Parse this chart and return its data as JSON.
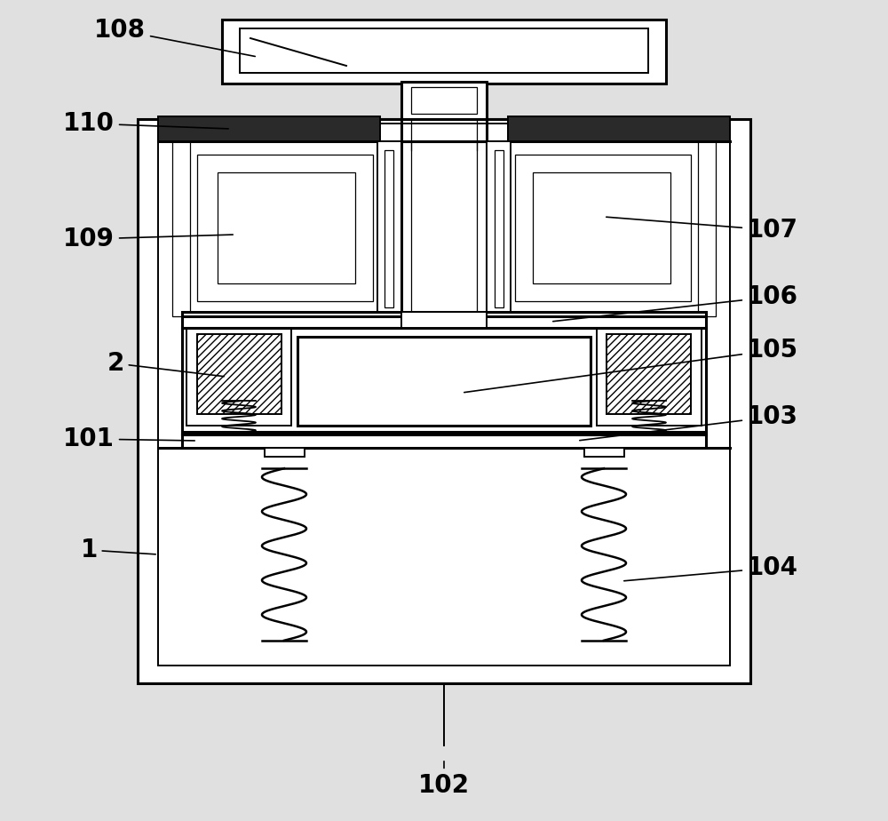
{
  "bg_color": "#e0e0e0",
  "line_color": "#000000",
  "dark_fill": "#2a2a2a",
  "fig_width": 10.0,
  "fig_height": 9.24,
  "font_size": 20,
  "font_weight": "bold"
}
